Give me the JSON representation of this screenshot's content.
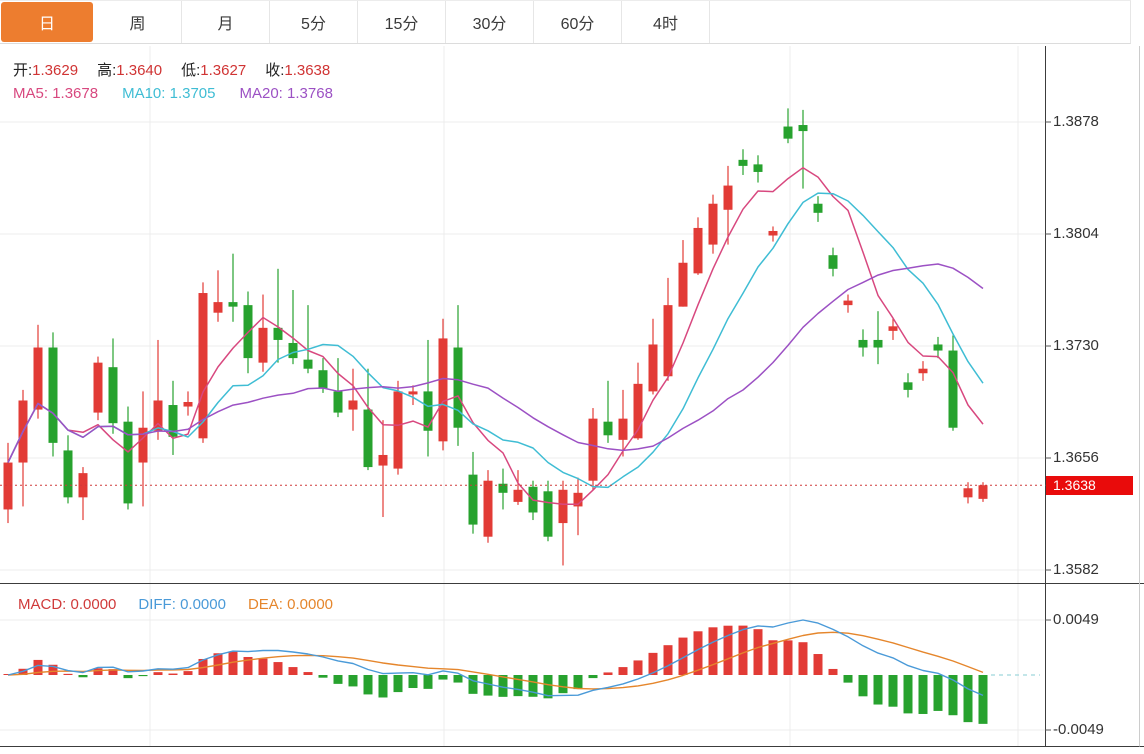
{
  "tab_bar": {
    "tabs": [
      {
        "id": "day",
        "label": "日",
        "active": true
      },
      {
        "id": "week",
        "label": "周",
        "active": false
      },
      {
        "id": "month",
        "label": "月",
        "active": false
      },
      {
        "id": "5min",
        "label": "5分",
        "active": false
      },
      {
        "id": "15min",
        "label": "15分",
        "active": false
      },
      {
        "id": "30min",
        "label": "30分",
        "active": false
      },
      {
        "id": "60min",
        "label": "60分",
        "active": false
      },
      {
        "id": "4hour",
        "label": "4时",
        "active": false
      }
    ]
  },
  "ohlc_legend": {
    "items": [
      {
        "label": "开:",
        "value": "1.3629"
      },
      {
        "label": "高:",
        "value": "1.3640"
      },
      {
        "label": "低:",
        "value": "1.3627"
      },
      {
        "label": "收:",
        "value": "1.3638"
      }
    ],
    "value_color": "#d03434"
  },
  "ma_legend": {
    "items": [
      {
        "label": "MA5: ",
        "value": "1.3678",
        "color": "#d8487f"
      },
      {
        "label": "MA10: ",
        "value": "1.3705",
        "color": "#3fbdd4"
      },
      {
        "label": "MA20: ",
        "value": "1.3768",
        "color": "#9c51c4"
      }
    ]
  },
  "macd_legend": {
    "items": [
      {
        "label": "MACD: ",
        "value": "0.0000",
        "color": "#d03a3a"
      },
      {
        "label": "DIFF: ",
        "value": "0.0000",
        "color": "#4a9ad8"
      },
      {
        "label": "DEA: ",
        "value": "0.0000",
        "color": "#e5862c"
      }
    ]
  },
  "price_axis": {
    "labels": [
      "1.3878",
      "1.3804",
      "1.3730",
      "1.3656",
      "1.3582"
    ],
    "values": [
      1.3878,
      1.3804,
      1.373,
      1.3656,
      1.3582
    ],
    "current_price_label": "1.3638",
    "current_price": 1.3638
  },
  "macd_axis": {
    "labels": [
      "0.0049",
      "-0.0049"
    ],
    "values": [
      0.0049,
      -0.0049
    ]
  },
  "colors": {
    "up": "#e23b36",
    "down": "#27a22e",
    "ma5": "#d8487f",
    "ma10": "#3fbdd4",
    "ma20": "#9c51c4",
    "diff_line": "#4a9ad8",
    "dea_line": "#e5862c",
    "badge_bg": "#e90b0b",
    "badge_text": "#ffffff",
    "active_tab_bg": "#ed7d2f",
    "grid": "#ececec",
    "divider": "#3c3c3c",
    "tick": "#555555",
    "dotted_price_line": "#cf3a3a",
    "flat_dash": "#9fd8dc"
  },
  "chart_data": {
    "type": "candlestick",
    "title": "",
    "ylabel": "price",
    "ylim": [
      1.3582,
      1.3878
    ],
    "macd_ylim": [
      -0.0049,
      0.0049
    ],
    "grid": true,
    "legend_position": "top-left",
    "indicators": {
      "ma_periods": [
        5,
        10,
        20
      ],
      "macd_params": [
        12,
        26,
        9
      ]
    },
    "up_means": "close >= open (red)",
    "ohlc": [
      [
        1.3622,
        1.3666,
        1.3613,
        1.3653
      ],
      [
        1.3653,
        1.3701,
        1.3624,
        1.3694
      ],
      [
        1.3688,
        1.3744,
        1.3682,
        1.3729
      ],
      [
        1.3729,
        1.3739,
        1.3657,
        1.3666
      ],
      [
        1.3661,
        1.3671,
        1.3626,
        1.363
      ],
      [
        1.363,
        1.365,
        1.3615,
        1.3646
      ],
      [
        1.3686,
        1.3723,
        1.3681,
        1.3719
      ],
      [
        1.3716,
        1.3735,
        1.3672,
        1.3679
      ],
      [
        1.368,
        1.369,
        1.3622,
        1.3626
      ],
      [
        1.3653,
        1.37,
        1.3624,
        1.3676
      ],
      [
        1.3674,
        1.3734,
        1.3668,
        1.3694
      ],
      [
        1.3691,
        1.3707,
        1.3658,
        1.367
      ],
      [
        1.369,
        1.37,
        1.3684,
        1.3693
      ],
      [
        1.3669,
        1.3772,
        1.3666,
        1.3765
      ],
      [
        1.3752,
        1.378,
        1.3746,
        1.3759
      ],
      [
        1.3759,
        1.3791,
        1.3746,
        1.3756
      ],
      [
        1.3757,
        1.3766,
        1.3712,
        1.3722
      ],
      [
        1.3719,
        1.3764,
        1.3713,
        1.3742
      ],
      [
        1.3742,
        1.3781,
        1.3719,
        1.3734
      ],
      [
        1.3732,
        1.3767,
        1.3718,
        1.3722
      ],
      [
        1.3721,
        1.3757,
        1.3712,
        1.3715
      ],
      [
        1.3714,
        1.3722,
        1.3699,
        1.3702
      ],
      [
        1.37,
        1.3722,
        1.3683,
        1.3686
      ],
      [
        1.3688,
        1.3715,
        1.3674,
        1.3694
      ],
      [
        1.3688,
        1.3715,
        1.3648,
        1.365
      ],
      [
        1.3651,
        1.3681,
        1.3617,
        1.3658
      ],
      [
        1.3649,
        1.3707,
        1.3645,
        1.37
      ],
      [
        1.3698,
        1.3704,
        1.3691,
        1.37
      ],
      [
        1.37,
        1.3734,
        1.3657,
        1.3674
      ],
      [
        1.3667,
        1.3748,
        1.3661,
        1.3735
      ],
      [
        1.3729,
        1.3757,
        1.3664,
        1.3676
      ],
      [
        1.3645,
        1.366,
        1.3606,
        1.3612
      ],
      [
        1.3604,
        1.3648,
        1.36,
        1.3641
      ],
      [
        1.3639,
        1.3649,
        1.3622,
        1.3633
      ],
      [
        1.3627,
        1.3648,
        1.3625,
        1.3635
      ],
      [
        1.3637,
        1.3641,
        1.3615,
        1.362
      ],
      [
        1.3634,
        1.3641,
        1.3601,
        1.3604
      ],
      [
        1.3613,
        1.3641,
        1.3585,
        1.3635
      ],
      [
        1.3624,
        1.3643,
        1.3605,
        1.3633
      ],
      [
        1.3641,
        1.3689,
        1.3635,
        1.3682
      ],
      [
        1.368,
        1.3707,
        1.3666,
        1.3671
      ],
      [
        1.3668,
        1.3701,
        1.3657,
        1.3682
      ],
      [
        1.3669,
        1.3719,
        1.3668,
        1.3705
      ],
      [
        1.37,
        1.3748,
        1.3698,
        1.3731
      ],
      [
        1.371,
        1.3775,
        1.3707,
        1.3757
      ],
      [
        1.3756,
        1.38,
        1.3756,
        1.3785
      ],
      [
        1.3778,
        1.3815,
        1.3777,
        1.3808
      ],
      [
        1.3797,
        1.383,
        1.3791,
        1.3824
      ],
      [
        1.382,
        1.3849,
        1.3797,
        1.3836
      ],
      [
        1.3853,
        1.386,
        1.3843,
        1.3849
      ],
      [
        1.385,
        1.3856,
        1.3838,
        1.3845
      ],
      [
        1.3803,
        1.3809,
        1.3799,
        1.3806
      ],
      [
        1.3875,
        1.3887,
        1.3864,
        1.3867
      ],
      [
        1.3876,
        1.3886,
        1.3834,
        1.3872
      ],
      [
        1.3824,
        1.3829,
        1.3812,
        1.3818
      ],
      [
        1.379,
        1.3795,
        1.3776,
        1.3781
      ],
      [
        1.3757,
        1.3764,
        1.3752,
        1.376
      ],
      [
        1.3734,
        1.3741,
        1.3723,
        1.3729
      ],
      [
        1.3734,
        1.3753,
        1.3718,
        1.3729
      ],
      [
        1.374,
        1.3748,
        1.3734,
        1.3743
      ],
      [
        1.3706,
        1.3712,
        1.3696,
        1.3701
      ],
      [
        1.3712,
        1.372,
        1.3707,
        1.3715
      ],
      [
        1.3731,
        1.3736,
        1.3722,
        1.3727
      ],
      [
        1.3727,
        1.3737,
        1.3674,
        1.3676
      ],
      [
        1.363,
        1.364,
        1.3626,
        1.3636
      ],
      [
        1.3629,
        1.364,
        1.3627,
        1.3638
      ]
    ]
  }
}
